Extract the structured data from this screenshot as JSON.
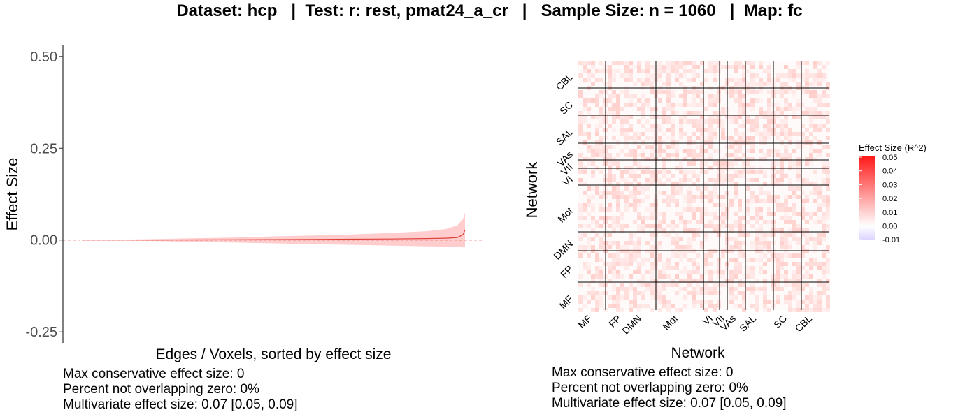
{
  "title": "Dataset: hcp   |  Test: r: rest, pmat24_a_cr   |   Sample Size: n = 1060   |  Map: fc",
  "chart_data": [
    {
      "type": "area",
      "xlabel": "Edges / Voxels, sorted by effect size",
      "ylabel": "Effect Size",
      "ylim": [
        -0.28,
        0.53
      ],
      "yticks": [
        0.5,
        0.25,
        0.0,
        -0.25
      ],
      "ytick_labels": [
        "0.50",
        "0.25",
        "0.00",
        "-0.25"
      ],
      "reference_line": 0,
      "x": [
        0,
        0.1,
        0.2,
        0.3,
        0.4,
        0.5,
        0.6,
        0.7,
        0.8,
        0.9,
        0.95,
        0.98,
        0.995,
        1.0
      ],
      "estimate": [
        0,
        0.0001,
        0.0003,
        0.0005,
        0.0008,
        0.0012,
        0.0017,
        0.0023,
        0.003,
        0.004,
        0.005,
        0.007,
        0.015,
        0.028
      ],
      "ci_lower": [
        0,
        -0.001,
        -0.003,
        -0.005,
        -0.007,
        -0.009,
        -0.011,
        -0.013,
        -0.015,
        -0.017,
        -0.018,
        -0.019,
        -0.02,
        -0.02
      ],
      "ci_upper": [
        0,
        0.001,
        0.003,
        0.005,
        0.007,
        0.01,
        0.012,
        0.015,
        0.019,
        0.024,
        0.03,
        0.04,
        0.058,
        0.075
      ],
      "colors": {
        "line": "#e0413a",
        "band": "#ffbcbc",
        "reference": "#e0413a"
      },
      "stats": [
        "Max conservative effect size: 0",
        "Percent not overlapping zero: 0%",
        "Multivariate effect size: 0.07 [0.05, 0.09]"
      ]
    },
    {
      "type": "heatmap",
      "xlabel": "Network",
      "ylabel": "Network",
      "networks": [
        "MF",
        "FP",
        "DMN",
        "Mot",
        "VI",
        "VII",
        "VAs",
        "SAL",
        "SC",
        "CBL"
      ],
      "legend": {
        "title": "Effect Size (R^2)",
        "ticks": [
          "0.05",
          "0.04",
          "0.03",
          "0.02",
          "0.01",
          "0.00",
          "-0.01"
        ],
        "colors": {
          "high": "#ff1a1a",
          "mid": "#ffffff",
          "low": "#dcd2ff"
        }
      },
      "stats": [
        "Max conservative effect size: 0",
        "Percent not overlapping zero: 0%",
        "Multivariate effect size: 0.07 [0.05, 0.09]"
      ]
    }
  ]
}
